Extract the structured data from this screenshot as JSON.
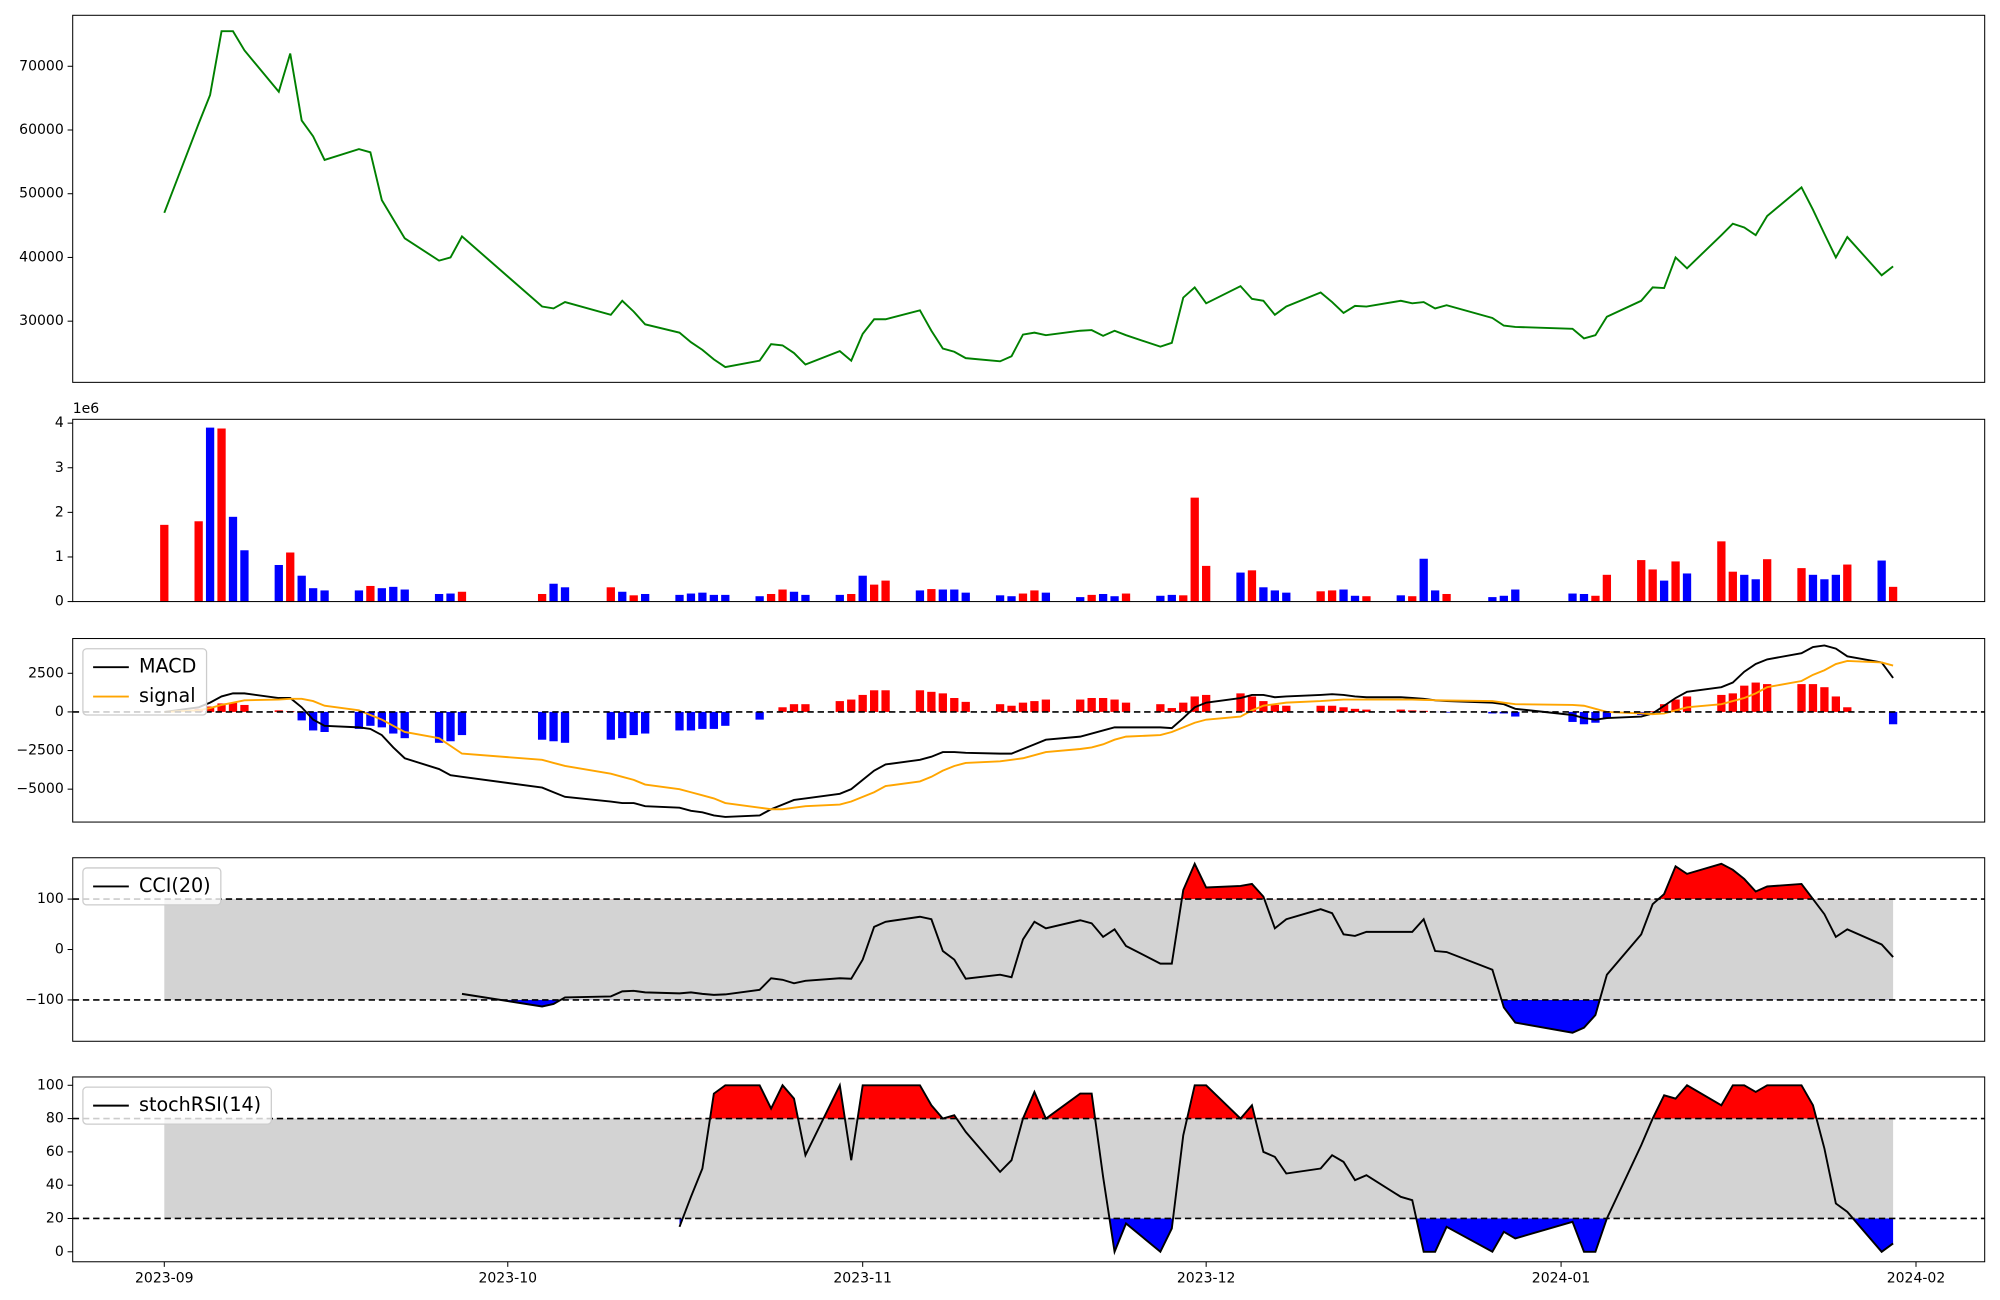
{
  "x": [
    "2023-09-01",
    "2023-09-04",
    "2023-09-05",
    "2023-09-06",
    "2023-09-07",
    "2023-09-08",
    "2023-09-11",
    "2023-09-12",
    "2023-09-13",
    "2023-09-14",
    "2023-09-15",
    "2023-09-18",
    "2023-09-19",
    "2023-09-20",
    "2023-09-21",
    "2023-09-22",
    "2023-09-25",
    "2023-09-26",
    "2023-09-27",
    "2023-10-04",
    "2023-10-05",
    "2023-10-06",
    "2023-10-10",
    "2023-10-11",
    "2023-10-12",
    "2023-10-13",
    "2023-10-16",
    "2023-10-17",
    "2023-10-18",
    "2023-10-19",
    "2023-10-20",
    "2023-10-23",
    "2023-10-24",
    "2023-10-25",
    "2023-10-26",
    "2023-10-27",
    "2023-10-30",
    "2023-10-31",
    "2023-11-01",
    "2023-11-02",
    "2023-11-03",
    "2023-11-06",
    "2023-11-07",
    "2023-11-08",
    "2023-11-09",
    "2023-11-10",
    "2023-11-13",
    "2023-11-14",
    "2023-11-15",
    "2023-11-16",
    "2023-11-17",
    "2023-11-20",
    "2023-11-21",
    "2023-11-22",
    "2023-11-23",
    "2023-11-24",
    "2023-11-27",
    "2023-11-28",
    "2023-11-29",
    "2023-11-30",
    "2023-12-01",
    "2023-12-04",
    "2023-12-05",
    "2023-12-06",
    "2023-12-07",
    "2023-12-08",
    "2023-12-11",
    "2023-12-12",
    "2023-12-13",
    "2023-12-14",
    "2023-12-15",
    "2023-12-18",
    "2023-12-19",
    "2023-12-20",
    "2023-12-21",
    "2023-12-22",
    "2023-12-26",
    "2023-12-27",
    "2023-12-28",
    "2024-01-02",
    "2024-01-03",
    "2024-01-04",
    "2024-01-05",
    "2024-01-08",
    "2024-01-09",
    "2024-01-10",
    "2024-01-11",
    "2024-01-12",
    "2024-01-15",
    "2024-01-16",
    "2024-01-17",
    "2024-01-18",
    "2024-01-19",
    "2024-01-22",
    "2024-01-23",
    "2024-01-24",
    "2024-01-25",
    "2024-01-26",
    "2024-01-29",
    "2024-01-30"
  ],
  "xlim": [
    "2023-08-24",
    "2024-02-07"
  ],
  "xticks": [
    {
      "value": "2023-09-01",
      "label": "2023-09"
    },
    {
      "value": "2023-10-01",
      "label": "2023-10"
    },
    {
      "value": "2023-11-01",
      "label": "2023-11"
    },
    {
      "value": "2023-12-01",
      "label": "2023-12"
    },
    {
      "value": "2024-01-01",
      "label": "2024-01"
    },
    {
      "value": "2024-02-01",
      "label": "2024-02"
    }
  ],
  "chart_data": [
    {
      "type": "line",
      "ylim": [
        20400,
        78000
      ],
      "yticks": [
        30000,
        40000,
        50000,
        60000,
        70000
      ],
      "series": [
        {
          "color": "green",
          "values": [
            47000,
            61000,
            65500,
            75500,
            75500,
            72500,
            66000,
            72000,
            61500,
            59000,
            55300,
            57000,
            56500,
            49000,
            46000,
            43000,
            39500,
            40000,
            43300,
            32300,
            32000,
            33000,
            31000,
            33200,
            31500,
            29500,
            28200,
            26700,
            25500,
            24000,
            22800,
            23800,
            26400,
            26200,
            25000,
            23200,
            25300,
            23800,
            28000,
            30300,
            30300,
            31700,
            28500,
            25700,
            25200,
            24200,
            23700,
            24500,
            27900,
            28200,
            27800,
            28500,
            28600,
            27700,
            28500,
            27800,
            26000,
            26600,
            33700,
            35300,
            32800,
            35500,
            33500,
            33200,
            31000,
            32300,
            34500,
            33000,
            31300,
            32400,
            32300,
            33200,
            32800,
            33000,
            32000,
            32500,
            30500,
            29300,
            29100,
            28800,
            27300,
            27800,
            30700,
            33200,
            35300,
            35200,
            40000,
            38300,
            43500,
            45300,
            44700,
            43500,
            46500,
            51000,
            47500,
            43700,
            40000,
            43200,
            37200,
            38600
          ]
        }
      ]
    },
    {
      "type": "bar",
      "ylim": [
        0,
        4086000
      ],
      "offset_label": "1e6",
      "yticks": [
        {
          "value": 0,
          "label": "0"
        },
        {
          "value": 1000000,
          "label": "1"
        },
        {
          "value": 2000000,
          "label": "2"
        },
        {
          "value": 3000000,
          "label": "3"
        },
        {
          "value": 4000000,
          "label": "4"
        }
      ],
      "values": [
        1720000,
        1800000,
        3900000,
        3880000,
        1900000,
        1150000,
        820000,
        1100000,
        580000,
        300000,
        250000,
        250000,
        350000,
        300000,
        330000,
        270000,
        170000,
        180000,
        220000,
        170000,
        400000,
        320000,
        320000,
        220000,
        140000,
        170000,
        150000,
        180000,
        200000,
        150000,
        150000,
        120000,
        170000,
        270000,
        220000,
        150000,
        150000,
        170000,
        580000,
        380000,
        470000,
        250000,
        280000,
        270000,
        270000,
        200000,
        140000,
        120000,
        180000,
        250000,
        200000,
        100000,
        150000,
        170000,
        120000,
        180000,
        130000,
        150000,
        140000,
        2330000,
        800000,
        650000,
        700000,
        320000,
        250000,
        200000,
        230000,
        250000,
        270000,
        130000,
        120000,
        140000,
        120000,
        960000,
        250000,
        170000,
        100000,
        130000,
        270000,
        180000,
        170000,
        130000,
        600000,
        930000,
        720000,
        470000,
        900000,
        630000,
        1350000,
        670000,
        600000,
        500000,
        950000,
        750000,
        600000,
        500000,
        600000,
        830000,
        920000,
        330000
      ],
      "colors": [
        "red",
        "red",
        "blue",
        "red",
        "blue",
        "blue",
        "blue",
        "red",
        "blue",
        "blue",
        "blue",
        "blue",
        "red",
        "blue",
        "blue",
        "blue",
        "blue",
        "blue",
        "red",
        "red",
        "blue",
        "blue",
        "red",
        "blue",
        "red",
        "blue",
        "blue",
        "blue",
        "blue",
        "blue",
        "blue",
        "blue",
        "red",
        "red",
        "blue",
        "blue",
        "blue",
        "red",
        "blue",
        "red",
        "red",
        "blue",
        "red",
        "blue",
        "blue",
        "blue",
        "blue",
        "blue",
        "red",
        "red",
        "blue",
        "blue",
        "red",
        "blue",
        "blue",
        "red",
        "blue",
        "blue",
        "red",
        "red",
        "red",
        "blue",
        "red",
        "blue",
        "blue",
        "blue",
        "red",
        "red",
        "blue",
        "blue",
        "red",
        "blue",
        "red",
        "blue",
        "blue",
        "red",
        "blue",
        "blue",
        "blue",
        "blue",
        "blue",
        "red",
        "red",
        "red",
        "red",
        "blue",
        "red",
        "blue",
        "red",
        "red",
        "blue",
        "blue",
        "red",
        "red",
        "blue",
        "blue",
        "blue",
        "red",
        "blue",
        "red"
      ]
    },
    {
      "type": "line",
      "ylim": [
        -7130,
        4750
      ],
      "yticks": [
        {
          "value": -5000,
          "label": "−5000"
        },
        {
          "value": -2500,
          "label": "−2500"
        },
        0,
        2500
      ],
      "hlines": [
        0
      ],
      "legend": "upper left",
      "series": [
        {
          "name": "MACD",
          "color": "black",
          "values": [
            0,
            300,
            600,
            1000,
            1200,
            1200,
            900,
            900,
            300,
            -500,
            -900,
            -1000,
            -1100,
            -1500,
            -2300,
            -3000,
            -3700,
            -4100,
            -4200,
            -4900,
            -5200,
            -5500,
            -5800,
            -5900,
            -5900,
            -6100,
            -6200,
            -6400,
            -6500,
            -6700,
            -6800,
            -6700,
            -6300,
            -6000,
            -5700,
            -5600,
            -5300,
            -5000,
            -4400,
            -3800,
            -3400,
            -3100,
            -2900,
            -2600,
            -2600,
            -2650,
            -2700,
            -2700,
            -2400,
            -2100,
            -1800,
            -1600,
            -1400,
            -1200,
            -1000,
            -1000,
            -1000,
            -1050,
            -400,
            300,
            600,
            900,
            1100,
            1100,
            950,
            1000,
            1100,
            1150,
            1100,
            1000,
            950,
            950,
            900,
            850,
            750,
            700,
            600,
            500,
            200,
            -200,
            -400,
            -500,
            -400,
            -300,
            -100,
            400,
            900,
            1300,
            1600,
            1900,
            2600,
            3100,
            3400,
            3800,
            4200,
            4300,
            4100,
            3600,
            3200,
            2200
          ]
        },
        {
          "name": "signal",
          "color": "orange",
          "values": [
            0,
            100,
            250,
            450,
            600,
            750,
            800,
            850,
            850,
            700,
            400,
            100,
            -200,
            -500,
            -900,
            -1300,
            -1700,
            -2200,
            -2700,
            -3100,
            -3300,
            -3500,
            -4000,
            -4200,
            -4400,
            -4700,
            -5000,
            -5200,
            -5400,
            -5600,
            -5900,
            -6200,
            -6300,
            -6300,
            -6200,
            -6100,
            -6000,
            -5800,
            -5500,
            -5200,
            -4800,
            -4500,
            -4200,
            -3800,
            -3500,
            -3300,
            -3200,
            -3100,
            -3000,
            -2800,
            -2600,
            -2400,
            -2300,
            -2100,
            -1800,
            -1600,
            -1500,
            -1300,
            -1000,
            -700,
            -500,
            -300,
            100,
            400,
            500,
            600,
            700,
            750,
            800,
            800,
            800,
            800,
            800,
            780,
            760,
            740,
            700,
            600,
            500,
            450,
            400,
            200,
            0,
            -100,
            -150,
            -100,
            100,
            300,
            500,
            700,
            900,
            1200,
            1600,
            2000,
            2400,
            2700,
            3100,
            3300,
            3200,
            3000
          ]
        },
        {
          "type": "bar",
          "pos_color": "red",
          "neg_color": "blue",
          "values": [
            0,
            200,
            350,
            550,
            600,
            450,
            100,
            50,
            -550,
            -1200,
            -1300,
            -1100,
            -900,
            -1000,
            -1400,
            -1700,
            -2000,
            -1900,
            -1500,
            -1800,
            -1900,
            -2000,
            -1800,
            -1700,
            -1500,
            -1400,
            -1200,
            -1200,
            -1100,
            -1100,
            -900,
            -500,
            0,
            300,
            500,
            500,
            700,
            800,
            1100,
            1400,
            1400,
            1400,
            1300,
            1200,
            900,
            650,
            500,
            400,
            600,
            700,
            800,
            800,
            900,
            900,
            800,
            600,
            500,
            250,
            600,
            1000,
            1100,
            1200,
            1000,
            700,
            450,
            400,
            400,
            400,
            300,
            200,
            150,
            150,
            100,
            70,
            -10,
            -40,
            -100,
            -100,
            -300,
            -650,
            -800,
            -700,
            -400,
            -200,
            50,
            500,
            800,
            1000,
            1100,
            1200,
            1700,
            1900,
            1800,
            1800,
            1800,
            1600,
            1000,
            300,
            0,
            -800
          ]
        }
      ]
    },
    {
      "type": "line",
      "ylim": [
        -182,
        182
      ],
      "yticks": [
        {
          "value": -100,
          "label": "−100"
        },
        0,
        100
      ],
      "hlines": [
        -100,
        100
      ],
      "band_color": "#d3d3d3",
      "fill_above_color": "red",
      "fill_below_color": "blue",
      "legend": "upper left",
      "series": [
        {
          "name": "CCI(20)",
          "color": "black",
          "values": [
            null,
            null,
            null,
            null,
            null,
            null,
            null,
            null,
            null,
            null,
            null,
            null,
            null,
            null,
            null,
            null,
            null,
            null,
            -88,
            -113,
            -108,
            -95,
            -93,
            -83,
            -82,
            -85,
            -87,
            -85,
            -88,
            -90,
            -89,
            -80,
            -57,
            -60,
            -67,
            -62,
            -57,
            -58,
            -20,
            45,
            55,
            65,
            60,
            -3,
            -20,
            -58,
            -50,
            -55,
            20,
            55,
            42,
            58,
            52,
            25,
            40,
            7,
            -28,
            -28,
            118,
            170,
            123,
            126,
            130,
            105,
            42,
            60,
            80,
            72,
            30,
            27,
            35,
            35,
            35,
            60,
            -3,
            -5,
            -40,
            -115,
            -145,
            -165,
            -155,
            -130,
            -50,
            30,
            90,
            110,
            165,
            150,
            170,
            158,
            140,
            115,
            125,
            130,
            100,
            70,
            25,
            40,
            10,
            -15
          ]
        }
      ]
    },
    {
      "type": "line",
      "ylim": [
        -6,
        105
      ],
      "yticks": [
        0,
        20,
        40,
        60,
        80,
        100
      ],
      "hlines": [
        20,
        80
      ],
      "band_color": "#d3d3d3",
      "fill_above_color": "red",
      "fill_below_color": "blue",
      "legend": "upper left",
      "series": [
        {
          "name": "stochRSI(14)",
          "color": "black",
          "values": [
            null,
            null,
            null,
            null,
            null,
            null,
            null,
            null,
            null,
            null,
            null,
            null,
            null,
            null,
            null,
            null,
            null,
            null,
            null,
            null,
            null,
            null,
            null,
            null,
            null,
            null,
            15,
            33,
            50,
            95,
            100,
            100,
            86,
            100,
            92,
            58,
            100,
            55,
            100,
            100,
            100,
            100,
            88,
            80,
            82,
            72,
            48,
            55,
            80,
            96,
            80,
            95,
            95,
            45,
            0,
            17,
            0,
            14,
            70,
            100,
            100,
            80,
            88,
            60,
            57,
            47,
            50,
            58,
            54,
            43,
            46,
            33,
            31,
            0,
            0,
            15,
            0,
            12,
            8,
            18,
            0,
            0,
            20,
            64,
            80,
            94,
            92,
            100,
            88,
            100,
            100,
            96,
            100,
            100,
            88,
            62,
            29,
            24,
            0,
            5
          ]
        }
      ]
    }
  ]
}
